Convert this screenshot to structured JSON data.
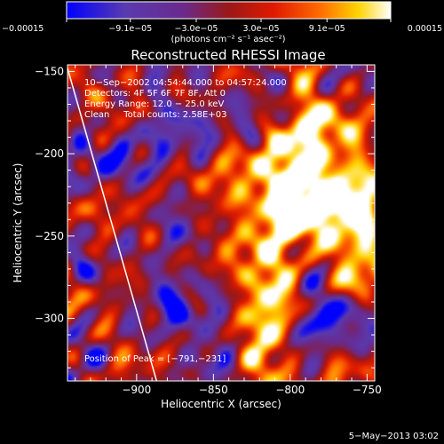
{
  "chart_data": {
    "type": "heatmap",
    "title": "Reconstructed RHESSI Image",
    "xlabel": "Heliocentric X (arcsec)",
    "ylabel": "Heliocentric Y (arcsec)",
    "xlim": [
      -945,
      -745
    ],
    "ylim": [
      -338,
      -146
    ],
    "x_ticks": [
      -900,
      -850,
      -800,
      -750
    ],
    "x_tick_labels": [
      "−900",
      "−850",
      "−800",
      "−750"
    ],
    "y_ticks": [
      -150,
      -200,
      -250,
      -300
    ],
    "y_tick_labels": [
      "−150",
      "−200",
      "−250",
      "−300"
    ],
    "colorbar": {
      "range": [
        -0.00015,
        0.00015
      ],
      "tick_values": [
        -0.00015,
        -9.1e-05,
        -3e-05,
        3e-05,
        9.1e-05,
        0.00015
      ],
      "tick_labels": [
        "−0.00015",
        "−9.1e−05",
        "−3.0e−05",
        "3.0e−05",
        "9.1e−05",
        "0.00015"
      ],
      "unit_label": "(photons cm⁻² s⁻¹ asec⁻²)",
      "colors": [
        "#0000ff",
        "#5a3ab0",
        "#6a2a8c",
        "#9a1818",
        "#e01a00",
        "#ff6a00",
        "#ffd400",
        "#ffffff"
      ]
    },
    "annotations": [
      "10−Sep−2002 04:54:44.000 to 04:57:24.000",
      "Detectors: 4F 5F 6F 7F 8F, Att 0",
      "Energy Range: 12.0 − 25.0 keV",
      "Clean     Total counts: 2.58E+03"
    ],
    "peak_label": "Position of Peak = [−791,−231]",
    "peak_position": [
      -791,
      -231
    ],
    "limb_points": [
      [
        -945,
        -148
      ],
      [
        -887,
        -338
      ]
    ],
    "limb_color": "#ffffff",
    "footer": "5−May−2013 03:02"
  }
}
